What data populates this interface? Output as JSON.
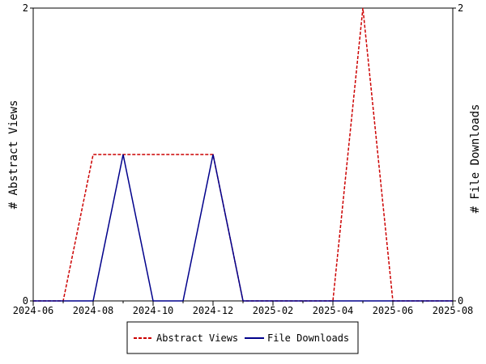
{
  "chart_data": {
    "type": "line",
    "x": [
      "2024-06",
      "2024-07",
      "2024-08",
      "2024-09",
      "2024-10",
      "2024-11",
      "2024-12",
      "2025-01",
      "2025-02",
      "2025-03",
      "2025-04",
      "2025-05",
      "2025-06",
      "2025-07",
      "2025-08"
    ],
    "x_tick_labels": [
      "2024-06",
      "2024-08",
      "2024-10",
      "2024-12",
      "2025-02",
      "2025-04",
      "2025-06",
      "2025-08"
    ],
    "ylabel_left": "# Abstract Views",
    "ylabel_right": "# File Downloads",
    "ylim_left": [
      0,
      2
    ],
    "ylim_right": [
      0,
      2
    ],
    "y_tick_labels_left": [
      "0",
      "2"
    ],
    "y_tick_labels_right": [
      "0",
      "2"
    ],
    "grid": false,
    "legend_position": "bottom",
    "series": [
      {
        "name": "Abstract Views",
        "axis": "left",
        "color": "#cc0000",
        "style": "dashed",
        "values": [
          0,
          0,
          1,
          1,
          1,
          1,
          1,
          0,
          0,
          0,
          0,
          2,
          0,
          0,
          0
        ]
      },
      {
        "name": "File Downloads",
        "axis": "right",
        "color": "#00008b",
        "style": "solid",
        "values": [
          0,
          0,
          0,
          1,
          0,
          0,
          1,
          0,
          0,
          0,
          0,
          0,
          0,
          0,
          0
        ]
      }
    ]
  }
}
